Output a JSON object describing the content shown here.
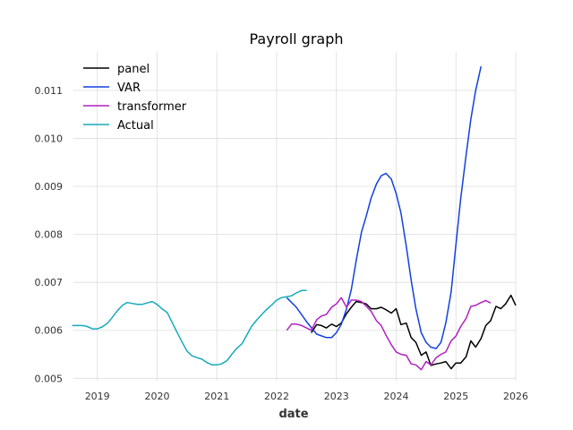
{
  "chart_data": {
    "type": "line",
    "title": "Payroll graph",
    "xlabel": "date",
    "ylabel": "",
    "xlim": [
      2018.6,
      2026.0
    ],
    "ylim": [
      0.00495,
      0.0118
    ],
    "x_ticks": [
      2019,
      2020,
      2021,
      2022,
      2023,
      2024,
      2025,
      2026
    ],
    "x_tick_labels": [
      "2019",
      "2020",
      "2021",
      "2022",
      "2023",
      "2024",
      "2025",
      "2026"
    ],
    "y_ticks": [
      0.005,
      0.006,
      0.007,
      0.008,
      0.009,
      0.01,
      0.011
    ],
    "y_tick_labels": [
      "0.005",
      "0.006",
      "0.007",
      "0.008",
      "0.009",
      "0.010",
      "0.011"
    ],
    "grid": true,
    "legend_position": "top-left",
    "series": [
      {
        "name": "panel",
        "color": "#000000",
        "points": [
          [
            2022.58,
            0.00595
          ],
          [
            2022.67,
            0.00612
          ],
          [
            2022.75,
            0.0061
          ],
          [
            2022.83,
            0.00605
          ],
          [
            2022.92,
            0.00613
          ],
          [
            2023.0,
            0.00608
          ],
          [
            2023.08,
            0.00615
          ],
          [
            2023.17,
            0.00635
          ],
          [
            2023.25,
            0.00648
          ],
          [
            2023.33,
            0.0066
          ],
          [
            2023.42,
            0.00658
          ],
          [
            2023.5,
            0.00655
          ],
          [
            2023.58,
            0.00645
          ],
          [
            2023.67,
            0.00645
          ],
          [
            2023.75,
            0.00648
          ],
          [
            2023.83,
            0.00643
          ],
          [
            2023.92,
            0.00636
          ],
          [
            2024.0,
            0.00645
          ],
          [
            2024.08,
            0.00612
          ],
          [
            2024.17,
            0.00615
          ],
          [
            2024.25,
            0.00585
          ],
          [
            2024.33,
            0.00575
          ],
          [
            2024.42,
            0.00548
          ],
          [
            2024.5,
            0.00555
          ],
          [
            2024.58,
            0.00527
          ],
          [
            2024.67,
            0.0053
          ],
          [
            2024.75,
            0.00532
          ],
          [
            2024.83,
            0.00535
          ],
          [
            2024.92,
            0.0052
          ],
          [
            2025.0,
            0.00532
          ],
          [
            2025.08,
            0.00532
          ],
          [
            2025.17,
            0.00545
          ],
          [
            2025.25,
            0.00578
          ],
          [
            2025.33,
            0.00565
          ],
          [
            2025.42,
            0.00583
          ],
          [
            2025.5,
            0.0061
          ],
          [
            2025.58,
            0.0062
          ],
          [
            2025.67,
            0.0065
          ],
          [
            2025.75,
            0.00645
          ],
          [
            2025.83,
            0.00655
          ],
          [
            2025.92,
            0.00673
          ],
          [
            2026.0,
            0.00652
          ]
        ]
      },
      {
        "name": "VAR",
        "color": "#1240e0",
        "points": [
          [
            2022.17,
            0.00668
          ],
          [
            2022.33,
            0.00648
          ],
          [
            2022.5,
            0.00618
          ],
          [
            2022.67,
            0.00592
          ],
          [
            2022.83,
            0.00585
          ],
          [
            2022.92,
            0.00585
          ],
          [
            2023.0,
            0.00595
          ],
          [
            2023.08,
            0.00612
          ],
          [
            2023.17,
            0.00645
          ],
          [
            2023.25,
            0.00685
          ],
          [
            2023.33,
            0.00745
          ],
          [
            2023.42,
            0.00805
          ],
          [
            2023.5,
            0.00838
          ],
          [
            2023.58,
            0.00875
          ],
          [
            2023.67,
            0.00905
          ],
          [
            2023.75,
            0.00922
          ],
          [
            2023.83,
            0.00927
          ],
          [
            2023.92,
            0.00915
          ],
          [
            2024.0,
            0.00885
          ],
          [
            2024.08,
            0.00845
          ],
          [
            2024.17,
            0.00775
          ],
          [
            2024.25,
            0.00705
          ],
          [
            2024.33,
            0.00645
          ],
          [
            2024.42,
            0.00595
          ],
          [
            2024.5,
            0.00575
          ],
          [
            2024.58,
            0.00565
          ],
          [
            2024.67,
            0.00562
          ],
          [
            2024.75,
            0.00575
          ],
          [
            2024.83,
            0.00615
          ],
          [
            2024.92,
            0.0068
          ],
          [
            2025.0,
            0.00778
          ],
          [
            2025.08,
            0.00875
          ],
          [
            2025.17,
            0.00965
          ],
          [
            2025.25,
            0.0104
          ],
          [
            2025.33,
            0.011
          ],
          [
            2025.42,
            0.0115
          ]
        ]
      },
      {
        "name": "transformer",
        "color": "#b021c0",
        "points": [
          [
            2022.17,
            0.006
          ],
          [
            2022.25,
            0.00613
          ],
          [
            2022.33,
            0.00613
          ],
          [
            2022.42,
            0.0061
          ],
          [
            2022.5,
            0.00605
          ],
          [
            2022.58,
            0.006
          ],
          [
            2022.67,
            0.00622
          ],
          [
            2022.75,
            0.0063
          ],
          [
            2022.83,
            0.00633
          ],
          [
            2022.92,
            0.00648
          ],
          [
            2023.0,
            0.00655
          ],
          [
            2023.08,
            0.00668
          ],
          [
            2023.17,
            0.00648
          ],
          [
            2023.25,
            0.00663
          ],
          [
            2023.33,
            0.00663
          ],
          [
            2023.42,
            0.0066
          ],
          [
            2023.5,
            0.0065
          ],
          [
            2023.58,
            0.0064
          ],
          [
            2023.67,
            0.0062
          ],
          [
            2023.75,
            0.0061
          ],
          [
            2023.83,
            0.0059
          ],
          [
            2023.92,
            0.0057
          ],
          [
            2024.0,
            0.00555
          ],
          [
            2024.08,
            0.0055
          ],
          [
            2024.17,
            0.00548
          ],
          [
            2024.25,
            0.0053
          ],
          [
            2024.33,
            0.00528
          ],
          [
            2024.42,
            0.00518
          ],
          [
            2024.5,
            0.00535
          ],
          [
            2024.58,
            0.00528
          ],
          [
            2024.67,
            0.00543
          ],
          [
            2024.75,
            0.0055
          ],
          [
            2024.83,
            0.00555
          ],
          [
            2024.92,
            0.00578
          ],
          [
            2025.0,
            0.00588
          ],
          [
            2025.08,
            0.00608
          ],
          [
            2025.17,
            0.00625
          ],
          [
            2025.25,
            0.0065
          ],
          [
            2025.33,
            0.00652
          ],
          [
            2025.42,
            0.00658
          ],
          [
            2025.5,
            0.00662
          ],
          [
            2025.58,
            0.00657
          ]
        ]
      },
      {
        "name": "Actual",
        "color": "#17aabb",
        "points": [
          [
            2018.58,
            0.0061
          ],
          [
            2018.75,
            0.0061
          ],
          [
            2018.83,
            0.00608
          ],
          [
            2018.92,
            0.00603
          ],
          [
            2019.0,
            0.00603
          ],
          [
            2019.08,
            0.00607
          ],
          [
            2019.17,
            0.00615
          ],
          [
            2019.25,
            0.00627
          ],
          [
            2019.33,
            0.0064
          ],
          [
            2019.42,
            0.00652
          ],
          [
            2019.5,
            0.00658
          ],
          [
            2019.58,
            0.00656
          ],
          [
            2019.67,
            0.00654
          ],
          [
            2019.75,
            0.00654
          ],
          [
            2019.83,
            0.00657
          ],
          [
            2019.92,
            0.0066
          ],
          [
            2020.0,
            0.00654
          ],
          [
            2020.08,
            0.00645
          ],
          [
            2020.17,
            0.00637
          ],
          [
            2020.25,
            0.00617
          ],
          [
            2020.33,
            0.00597
          ],
          [
            2020.42,
            0.00575
          ],
          [
            2020.5,
            0.00557
          ],
          [
            2020.58,
            0.00547
          ],
          [
            2020.67,
            0.00543
          ],
          [
            2020.75,
            0.0054
          ],
          [
            2020.83,
            0.00533
          ],
          [
            2020.92,
            0.00528
          ],
          [
            2021.0,
            0.00528
          ],
          [
            2021.08,
            0.0053
          ],
          [
            2021.17,
            0.00537
          ],
          [
            2021.25,
            0.0055
          ],
          [
            2021.33,
            0.00562
          ],
          [
            2021.42,
            0.00572
          ],
          [
            2021.5,
            0.0059
          ],
          [
            2021.58,
            0.00608
          ],
          [
            2021.67,
            0.00622
          ],
          [
            2021.75,
            0.00633
          ],
          [
            2021.83,
            0.00643
          ],
          [
            2021.92,
            0.00653
          ],
          [
            2022.0,
            0.00663
          ],
          [
            2022.08,
            0.00668
          ],
          [
            2022.17,
            0.0067
          ],
          [
            2022.25,
            0.00672
          ],
          [
            2022.33,
            0.00678
          ],
          [
            2022.42,
            0.00683
          ],
          [
            2022.5,
            0.00683
          ]
        ]
      }
    ]
  }
}
